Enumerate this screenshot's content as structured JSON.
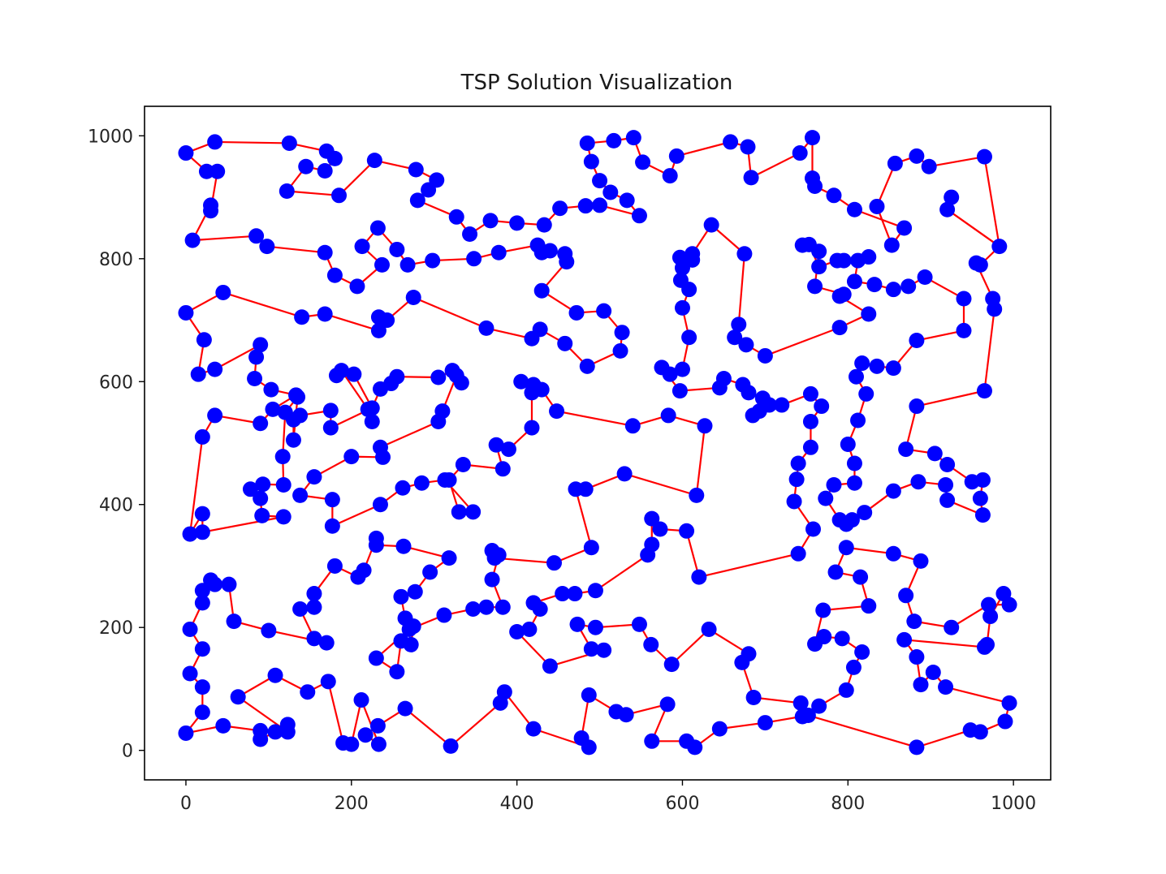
{
  "chart_data": {
    "type": "scatter",
    "title": "TSP Solution Visualization",
    "xlabel": "",
    "ylabel": "",
    "xlim": [
      -50,
      1045
    ],
    "ylim": [
      -48,
      1048
    ],
    "grid": false,
    "legend": "none",
    "xticks": [
      0,
      200,
      400,
      600,
      800,
      1000
    ],
    "yticks": [
      0,
      200,
      400,
      600,
      800,
      1000
    ],
    "point_color": "#0000ff",
    "line_color": "#ff0000",
    "closed": true,
    "route": [
      [
        0,
        972
      ],
      [
        35,
        990
      ],
      [
        125,
        988
      ],
      [
        170,
        975
      ],
      [
        180,
        963
      ],
      [
        168,
        943
      ],
      [
        145,
        950
      ],
      [
        122,
        910
      ],
      [
        185,
        903
      ],
      [
        228,
        960
      ],
      [
        278,
        945
      ],
      [
        303,
        928
      ],
      [
        293,
        912
      ],
      [
        280,
        895
      ],
      [
        327,
        868
      ],
      [
        343,
        840
      ],
      [
        368,
        862
      ],
      [
        400,
        858
      ],
      [
        433,
        855
      ],
      [
        452,
        882
      ],
      [
        483,
        886
      ],
      [
        500,
        887
      ],
      [
        548,
        870
      ],
      [
        533,
        895
      ],
      [
        513,
        908
      ],
      [
        500,
        927
      ],
      [
        490,
        958
      ],
      [
        485,
        988
      ],
      [
        517,
        992
      ],
      [
        541,
        997
      ],
      [
        552,
        957
      ],
      [
        585,
        935
      ],
      [
        593,
        967
      ],
      [
        658,
        990
      ],
      [
        679,
        982
      ],
      [
        683,
        932
      ],
      [
        742,
        972
      ],
      [
        757,
        997
      ],
      [
        757,
        931
      ],
      [
        760,
        918
      ],
      [
        783,
        903
      ],
      [
        808,
        880
      ],
      [
        868,
        850
      ],
      [
        853,
        822
      ],
      [
        835,
        885
      ],
      [
        857,
        955
      ],
      [
        883,
        967
      ],
      [
        898,
        950
      ],
      [
        965,
        966
      ],
      [
        983,
        820
      ],
      [
        920,
        880
      ],
      [
        925,
        900
      ],
      [
        920,
        880
      ],
      [
        983,
        820
      ],
      [
        983,
        820
      ],
      [
        960,
        790
      ],
      [
        955,
        793
      ],
      [
        975,
        735
      ],
      [
        977,
        718
      ],
      [
        965,
        585
      ],
      [
        883,
        560
      ],
      [
        870,
        490
      ],
      [
        905,
        483
      ],
      [
        920,
        465
      ],
      [
        950,
        437
      ],
      [
        963,
        440
      ],
      [
        960,
        410
      ],
      [
        963,
        383
      ],
      [
        920,
        407
      ],
      [
        918,
        432
      ],
      [
        885,
        437
      ],
      [
        855,
        422
      ],
      [
        820,
        387
      ],
      [
        805,
        375
      ],
      [
        798,
        368
      ],
      [
        790,
        375
      ],
      [
        773,
        410
      ],
      [
        783,
        432
      ],
      [
        808,
        435
      ],
      [
        808,
        467
      ],
      [
        800,
        498
      ],
      [
        812,
        537
      ],
      [
        822,
        580
      ],
      [
        810,
        608
      ],
      [
        817,
        630
      ],
      [
        835,
        625
      ],
      [
        855,
        622
      ],
      [
        883,
        667
      ],
      [
        940,
        683
      ],
      [
        940,
        735
      ],
      [
        893,
        770
      ],
      [
        873,
        755
      ],
      [
        855,
        750
      ],
      [
        832,
        758
      ],
      [
        808,
        763
      ],
      [
        812,
        797
      ],
      [
        825,
        803
      ],
      [
        795,
        797
      ],
      [
        787,
        797
      ],
      [
        765,
        787
      ],
      [
        753,
        823
      ],
      [
        745,
        822
      ],
      [
        765,
        812
      ],
      [
        760,
        755
      ],
      [
        795,
        742
      ],
      [
        790,
        739
      ],
      [
        825,
        710
      ],
      [
        790,
        688
      ],
      [
        700,
        642
      ],
      [
        677,
        660
      ],
      [
        663,
        672
      ],
      [
        668,
        693
      ],
      [
        675,
        808
      ],
      [
        635,
        855
      ],
      [
        612,
        808
      ],
      [
        612,
        798
      ],
      [
        597,
        802
      ],
      [
        600,
        785
      ],
      [
        598,
        765
      ],
      [
        608,
        750
      ],
      [
        600,
        720
      ],
      [
        608,
        672
      ],
      [
        600,
        620
      ],
      [
        585,
        612
      ],
      [
        575,
        623
      ],
      [
        597,
        585
      ],
      [
        645,
        590
      ],
      [
        650,
        605
      ],
      [
        673,
        595
      ],
      [
        680,
        582
      ],
      [
        697,
        573
      ],
      [
        705,
        562
      ],
      [
        685,
        545
      ],
      [
        693,
        552
      ],
      [
        720,
        562
      ],
      [
        755,
        580
      ],
      [
        768,
        560
      ],
      [
        755,
        535
      ],
      [
        755,
        493
      ],
      [
        740,
        467
      ],
      [
        738,
        441
      ],
      [
        735,
        405
      ],
      [
        758,
        360
      ],
      [
        740,
        320
      ],
      [
        620,
        282
      ],
      [
        605,
        357
      ],
      [
        573,
        360
      ],
      [
        563,
        377
      ],
      [
        563,
        335
      ],
      [
        558,
        318
      ],
      [
        495,
        260
      ],
      [
        470,
        255
      ],
      [
        455,
        255
      ],
      [
        420,
        240
      ],
      [
        428,
        230
      ],
      [
        415,
        197
      ],
      [
        400,
        193
      ],
      [
        440,
        137
      ],
      [
        505,
        163
      ],
      [
        490,
        165
      ],
      [
        473,
        205
      ],
      [
        495,
        200
      ],
      [
        548,
        205
      ],
      [
        562,
        172
      ],
      [
        587,
        140
      ],
      [
        632,
        197
      ],
      [
        680,
        157
      ],
      [
        672,
        143
      ],
      [
        686,
        86
      ],
      [
        743,
        77
      ],
      [
        745,
        55
      ],
      [
        765,
        72
      ],
      [
        798,
        98
      ],
      [
        807,
        135
      ],
      [
        817,
        160
      ],
      [
        793,
        182
      ],
      [
        771,
        185
      ],
      [
        760,
        173
      ],
      [
        770,
        228
      ],
      [
        825,
        235
      ],
      [
        815,
        282
      ],
      [
        785,
        290
      ],
      [
        798,
        330
      ],
      [
        855,
        320
      ],
      [
        888,
        308
      ],
      [
        870,
        252
      ],
      [
        880,
        210
      ],
      [
        925,
        200
      ],
      [
        970,
        237
      ],
      [
        995,
        237
      ],
      [
        988,
        255
      ],
      [
        972,
        218
      ],
      [
        968,
        172
      ],
      [
        965,
        168
      ],
      [
        868,
        180
      ],
      [
        883,
        152
      ],
      [
        888,
        107
      ],
      [
        903,
        127
      ],
      [
        918,
        103
      ],
      [
        995,
        77
      ],
      [
        990,
        47
      ],
      [
        960,
        30
      ],
      [
        948,
        33
      ],
      [
        883,
        5
      ],
      [
        752,
        57
      ],
      [
        700,
        45
      ],
      [
        645,
        35
      ],
      [
        615,
        5
      ],
      [
        605,
        15
      ],
      [
        563,
        15
      ],
      [
        582,
        75
      ],
      [
        532,
        58
      ],
      [
        520,
        63
      ],
      [
        487,
        90
      ],
      [
        478,
        20
      ],
      [
        487,
        5
      ],
      [
        420,
        35
      ],
      [
        385,
        95
      ],
      [
        380,
        77
      ],
      [
        320,
        7
      ],
      [
        265,
        68
      ],
      [
        232,
        40
      ],
      [
        217,
        25
      ],
      [
        233,
        10
      ],
      [
        212,
        82
      ],
      [
        200,
        10
      ],
      [
        190,
        12
      ],
      [
        172,
        112
      ],
      [
        147,
        95
      ],
      [
        108,
        122
      ],
      [
        63,
        87
      ],
      [
        123,
        30
      ],
      [
        123,
        42
      ],
      [
        108,
        30
      ],
      [
        90,
        18
      ],
      [
        90,
        32
      ],
      [
        45,
        40
      ],
      [
        0,
        28
      ],
      [
        20,
        62
      ],
      [
        20,
        103
      ],
      [
        5,
        125
      ],
      [
        20,
        165
      ],
      [
        5,
        197
      ],
      [
        20,
        240
      ],
      [
        20,
        260
      ],
      [
        30,
        277
      ],
      [
        35,
        270
      ],
      [
        52,
        270
      ],
      [
        58,
        210
      ],
      [
        100,
        195
      ],
      [
        170,
        175
      ],
      [
        155,
        182
      ],
      [
        138,
        230
      ],
      [
        155,
        233
      ],
      [
        155,
        255
      ],
      [
        180,
        300
      ],
      [
        208,
        282
      ],
      [
        215,
        293
      ],
      [
        230,
        345
      ],
      [
        230,
        334
      ],
      [
        263,
        332
      ],
      [
        318,
        313
      ],
      [
        295,
        290
      ],
      [
        277,
        258
      ],
      [
        260,
        250
      ],
      [
        265,
        215
      ],
      [
        275,
        202
      ],
      [
        272,
        172
      ],
      [
        260,
        178
      ],
      [
        255,
        128
      ],
      [
        230,
        150
      ],
      [
        270,
        197
      ],
      [
        312,
        220
      ],
      [
        347,
        230
      ],
      [
        363,
        233
      ],
      [
        383,
        233
      ],
      [
        370,
        278
      ],
      [
        378,
        318
      ],
      [
        370,
        325
      ],
      [
        373,
        313
      ],
      [
        445,
        305
      ],
      [
        490,
        330
      ],
      [
        471,
        425
      ],
      [
        483,
        425
      ],
      [
        530,
        450
      ],
      [
        617,
        415
      ],
      [
        627,
        528
      ],
      [
        583,
        545
      ],
      [
        540,
        528
      ],
      [
        448,
        552
      ],
      [
        430,
        587
      ],
      [
        420,
        595
      ],
      [
        405,
        600
      ],
      [
        418,
        582
      ],
      [
        418,
        525
      ],
      [
        390,
        490
      ],
      [
        375,
        497
      ],
      [
        383,
        458
      ],
      [
        335,
        465
      ],
      [
        318,
        440
      ],
      [
        330,
        388
      ],
      [
        347,
        388
      ],
      [
        313,
        440
      ],
      [
        285,
        435
      ],
      [
        262,
        427
      ],
      [
        235,
        400
      ],
      [
        177,
        365
      ],
      [
        177,
        408
      ],
      [
        138,
        415
      ],
      [
        155,
        445
      ],
      [
        200,
        478
      ],
      [
        238,
        477
      ],
      [
        235,
        493
      ],
      [
        305,
        535
      ],
      [
        310,
        552
      ],
      [
        327,
        610
      ],
      [
        333,
        598
      ],
      [
        322,
        618
      ],
      [
        305,
        607
      ],
      [
        255,
        608
      ],
      [
        248,
        597
      ],
      [
        235,
        588
      ],
      [
        225,
        557
      ],
      [
        225,
        535
      ],
      [
        220,
        555
      ],
      [
        188,
        618
      ],
      [
        182,
        610
      ],
      [
        203,
        612
      ],
      [
        225,
        557
      ],
      [
        175,
        525
      ],
      [
        175,
        553
      ],
      [
        138,
        545
      ],
      [
        130,
        538
      ],
      [
        130,
        505
      ],
      [
        135,
        575
      ],
      [
        120,
        550
      ],
      [
        117,
        478
      ],
      [
        118,
        432
      ],
      [
        93,
        433
      ],
      [
        78,
        425
      ],
      [
        90,
        410
      ],
      [
        92,
        382
      ],
      [
        118,
        380
      ],
      [
        20,
        355
      ],
      [
        20,
        385
      ],
      [
        5,
        352
      ],
      [
        20,
        510
      ],
      [
        35,
        545
      ],
      [
        90,
        532
      ],
      [
        105,
        555
      ],
      [
        133,
        578
      ],
      [
        103,
        587
      ],
      [
        83,
        605
      ],
      [
        85,
        640
      ],
      [
        90,
        660
      ],
      [
        35,
        620
      ],
      [
        15,
        612
      ],
      [
        22,
        668
      ],
      [
        0,
        712
      ],
      [
        45,
        745
      ],
      [
        140,
        705
      ],
      [
        168,
        710
      ],
      [
        233,
        683
      ],
      [
        233,
        705
      ],
      [
        243,
        700
      ],
      [
        275,
        737
      ],
      [
        363,
        687
      ],
      [
        418,
        670
      ],
      [
        428,
        685
      ],
      [
        458,
        662
      ],
      [
        485,
        625
      ],
      [
        525,
        650
      ],
      [
        527,
        680
      ],
      [
        505,
        715
      ],
      [
        472,
        712
      ],
      [
        430,
        748
      ],
      [
        460,
        795
      ],
      [
        458,
        808
      ],
      [
        440,
        813
      ],
      [
        430,
        810
      ],
      [
        425,
        822
      ],
      [
        378,
        810
      ],
      [
        348,
        800
      ],
      [
        298,
        797
      ],
      [
        268,
        790
      ],
      [
        255,
        815
      ],
      [
        232,
        850
      ],
      [
        213,
        820
      ],
      [
        237,
        790
      ],
      [
        207,
        755
      ],
      [
        180,
        773
      ],
      [
        168,
        810
      ],
      [
        98,
        820
      ],
      [
        85,
        837
      ],
      [
        8,
        830
      ],
      [
        30,
        887
      ],
      [
        30,
        878
      ],
      [
        38,
        942
      ],
      [
        25,
        942
      ],
      [
        0,
        972
      ]
    ]
  }
}
